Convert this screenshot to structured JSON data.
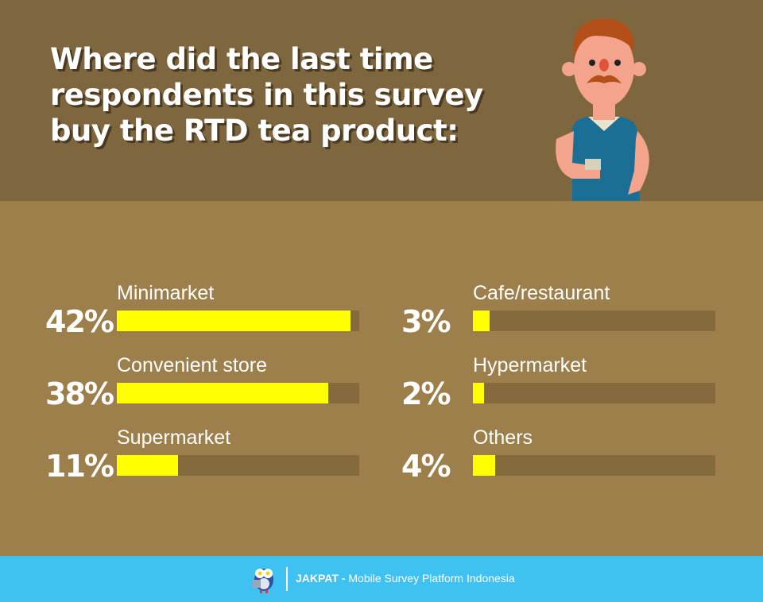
{
  "title": "Where did the last time respondents in this survey buy the RTD tea product:",
  "chart_data": {
    "type": "bar",
    "title": "Where did the last time respondents in this survey buy the RTD tea product:",
    "categories": [
      "Minimarket",
      "Convenient store",
      "Supermarket",
      "Cafe/restaurant",
      "Hypermarket",
      "Others"
    ],
    "values": [
      42,
      38,
      11,
      3,
      2,
      4
    ],
    "labels": [
      "42%",
      "38%",
      "11%",
      "3%",
      "2%",
      "4%"
    ],
    "unit": "%",
    "colors": {
      "fill": "#ffff00",
      "track": "#846a3d",
      "background": "#9c7f4b",
      "header": "#7e663e"
    }
  },
  "footer": {
    "brand": "JAKPAT -",
    "tagline": "Mobile Survey Platform Indonesia",
    "color": "#3fc1f1",
    "logo": "owl-mascot-icon"
  }
}
